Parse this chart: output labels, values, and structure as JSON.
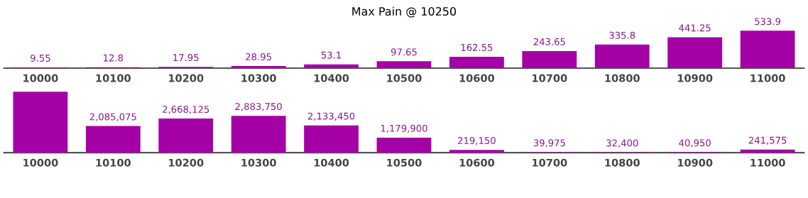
{
  "chart_data": [
    {
      "type": "bar",
      "title": "Max Pain @ 10250",
      "categories": [
        "10000",
        "10100",
        "10200",
        "10300",
        "10400",
        "10500",
        "10600",
        "10700",
        "10800",
        "10900",
        "11000"
      ],
      "values": [
        9.55,
        12.8,
        17.95,
        28.95,
        53.1,
        97.65,
        162.55,
        243.65,
        335.8,
        441.25,
        533.9
      ],
      "color": "#a500a5",
      "data_labels": true,
      "tick_labels": "x"
    },
    {
      "type": "bar",
      "categories": [
        "10000",
        "10100",
        "10200",
        "10300",
        "10400",
        "10500",
        "10600",
        "10700",
        "10800",
        "10900",
        "11000"
      ],
      "values": [
        4770000,
        2085075,
        2668125,
        2883750,
        2133450,
        1179900,
        219150,
        39975,
        32400,
        40950,
        241575
      ],
      "color": "#a500a5",
      "value_labels": [
        null,
        "2,085,075",
        "2,668,125",
        "2,883,750",
        "2,133,450",
        "1,179,900",
        "219,150",
        "39,975",
        "32,400",
        "40,950",
        "241,575"
      ],
      "tick_labels": "x"
    }
  ]
}
